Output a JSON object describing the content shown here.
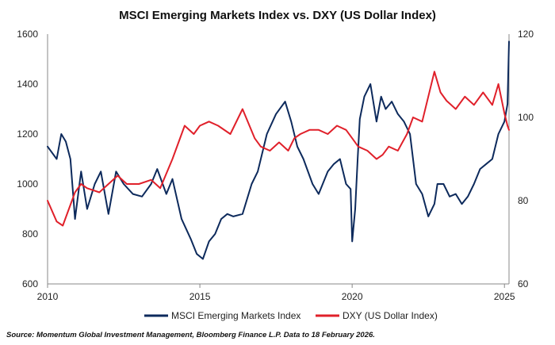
{
  "chart_data": {
    "type": "line",
    "title": "MSCI Emerging Markets Index vs. DXY (US Dollar Index)",
    "source": "Source: Momentum Global Investment Management, Bloomberg Finance L.P. Data to 18 February 2026.",
    "x_ticks": [
      "2010",
      "2015",
      "2020",
      "2025"
    ],
    "x_range": [
      2010,
      2025.15
    ],
    "y_left": {
      "range": [
        600,
        1600
      ],
      "ticks": [
        "600",
        "800",
        "1000",
        "1200",
        "1400",
        "1600"
      ]
    },
    "y_right": {
      "range": [
        60,
        120
      ],
      "ticks": [
        "60",
        "80",
        "100",
        "120"
      ]
    },
    "grid": false,
    "legend_position": "bottom",
    "series": [
      {
        "name": "MSCI Emerging Markets Index",
        "axis": "left",
        "color": "#0d2a5c",
        "x": [
          2010.0,
          2010.3,
          2010.45,
          2010.6,
          2010.75,
          2010.9,
          2011.1,
          2011.3,
          2011.55,
          2011.75,
          2012.0,
          2012.25,
          2012.5,
          2012.8,
          2013.1,
          2013.4,
          2013.6,
          2013.9,
          2014.1,
          2014.4,
          2014.7,
          2014.9,
          2015.1,
          2015.3,
          2015.5,
          2015.7,
          2015.9,
          2016.1,
          2016.4,
          2016.7,
          2016.9,
          2017.2,
          2017.5,
          2017.8,
          2018.0,
          2018.2,
          2018.4,
          2018.7,
          2018.9,
          2019.2,
          2019.4,
          2019.6,
          2019.8,
          2019.95,
          2020.0,
          2020.1,
          2020.18,
          2020.25,
          2020.4,
          2020.6,
          2020.8,
          2020.95,
          2021.1,
          2021.3,
          2021.5,
          2021.7,
          2021.9,
          2022.1,
          2022.3,
          2022.5,
          2022.7,
          2022.8,
          2023.0,
          2023.2,
          2023.4,
          2023.6,
          2023.8,
          2024.0,
          2024.2,
          2024.4,
          2024.6,
          2024.8,
          2025.0,
          2025.1,
          2025.15
        ],
        "values": [
          1150,
          1100,
          1200,
          1170,
          1100,
          860,
          1050,
          900,
          1000,
          1050,
          880,
          1050,
          1000,
          960,
          950,
          1000,
          1060,
          960,
          1020,
          860,
          780,
          720,
          700,
          770,
          800,
          860,
          880,
          870,
          880,
          1000,
          1050,
          1200,
          1280,
          1330,
          1250,
          1150,
          1100,
          1000,
          960,
          1050,
          1080,
          1100,
          1000,
          980,
          770,
          900,
          1100,
          1260,
          1350,
          1400,
          1250,
          1350,
          1300,
          1330,
          1280,
          1250,
          1200,
          1000,
          960,
          870,
          920,
          1000,
          1000,
          950,
          960,
          920,
          950,
          1000,
          1060,
          1080,
          1100,
          1200,
          1250,
          1320,
          1570
        ]
      },
      {
        "name": "DXY (US Dollar Index)",
        "axis": "right",
        "color": "#e0202a",
        "x": [
          2010.0,
          2010.3,
          2010.5,
          2010.9,
          2011.1,
          2011.3,
          2011.7,
          2012.0,
          2012.3,
          2012.6,
          2013.0,
          2013.4,
          2013.7,
          2014.1,
          2014.5,
          2014.8,
          2015.0,
          2015.3,
          2015.6,
          2016.0,
          2016.4,
          2016.8,
          2017.0,
          2017.3,
          2017.6,
          2017.9,
          2018.1,
          2018.3,
          2018.6,
          2018.9,
          2019.2,
          2019.5,
          2019.8,
          2020.0,
          2020.2,
          2020.5,
          2020.8,
          2021.0,
          2021.2,
          2021.5,
          2021.8,
          2022.0,
          2022.3,
          2022.5,
          2022.7,
          2022.9,
          2023.1,
          2023.4,
          2023.7,
          2024.0,
          2024.3,
          2024.6,
          2024.8,
          2025.0,
          2025.1,
          2025.15
        ],
        "values": [
          80,
          75,
          74,
          82,
          84,
          83,
          82,
          84,
          86,
          84,
          84,
          85,
          83,
          90,
          98,
          96,
          98,
          99,
          98,
          96,
          102,
          95,
          93,
          92,
          94,
          92,
          95,
          96,
          97,
          97,
          96,
          98,
          97,
          95,
          93,
          92,
          90,
          91,
          93,
          92,
          96,
          100,
          99,
          105,
          111,
          106,
          104,
          102,
          105,
          103,
          106,
          103,
          108,
          101,
          98,
          97
        ]
      }
    ]
  }
}
